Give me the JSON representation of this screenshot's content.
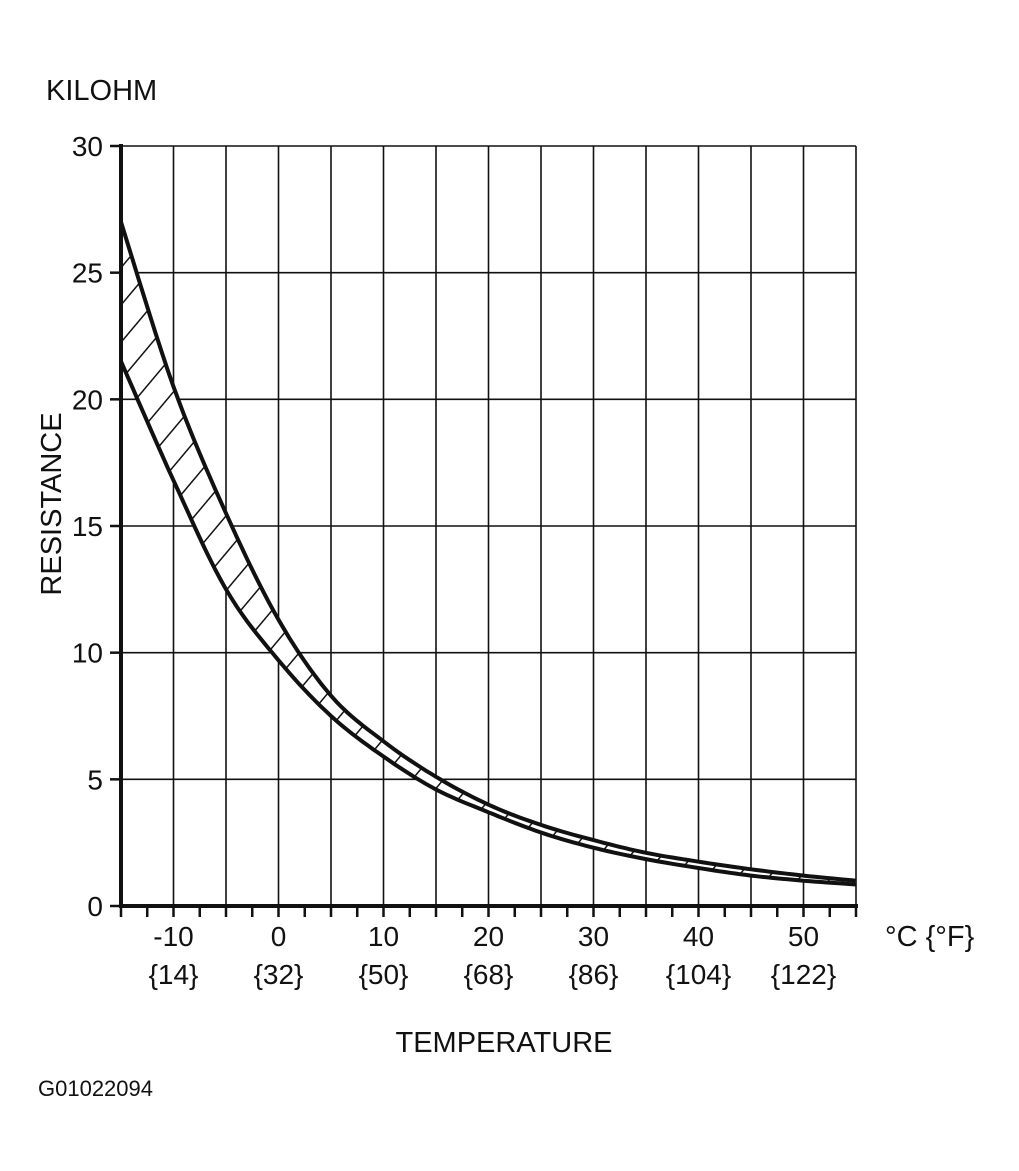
{
  "chart_data": {
    "type": "area",
    "unit_label": "KILOHM",
    "ylabel": "RESISTANCE",
    "xlabel": "TEMPERATURE",
    "x_unit_label": "°C {°F}",
    "figure_code": "G01022094",
    "xlim": [
      -15,
      55
    ],
    "ylim": [
      0,
      30
    ],
    "x_ticks_c": [
      "-10",
      "0",
      "10",
      "20",
      "30",
      "40",
      "50"
    ],
    "x_ticks_f": [
      "{14}",
      "{32}",
      "{50}",
      "{68}",
      "{86}",
      "{104}",
      "{122}"
    ],
    "y_ticks": [
      "0",
      "5",
      "10",
      "15",
      "20",
      "25",
      "30"
    ],
    "grid": true,
    "band_fill": "diagonal hatching",
    "x": [
      -15,
      -10,
      -5,
      0,
      5,
      10,
      15,
      20,
      25,
      30,
      35,
      40,
      45,
      50,
      55
    ],
    "series": [
      {
        "values": [
          27.0,
          20.5,
          15.5,
          11.3,
          8.3,
          6.5,
          5.1,
          4.0,
          3.2,
          2.6,
          2.1,
          1.75,
          1.45,
          1.2,
          1.0
        ]
      },
      {
        "values": [
          21.5,
          16.8,
          12.5,
          9.7,
          7.5,
          5.9,
          4.6,
          3.7,
          2.9,
          2.3,
          1.85,
          1.5,
          1.2,
          1.0,
          0.85
        ]
      }
    ]
  }
}
